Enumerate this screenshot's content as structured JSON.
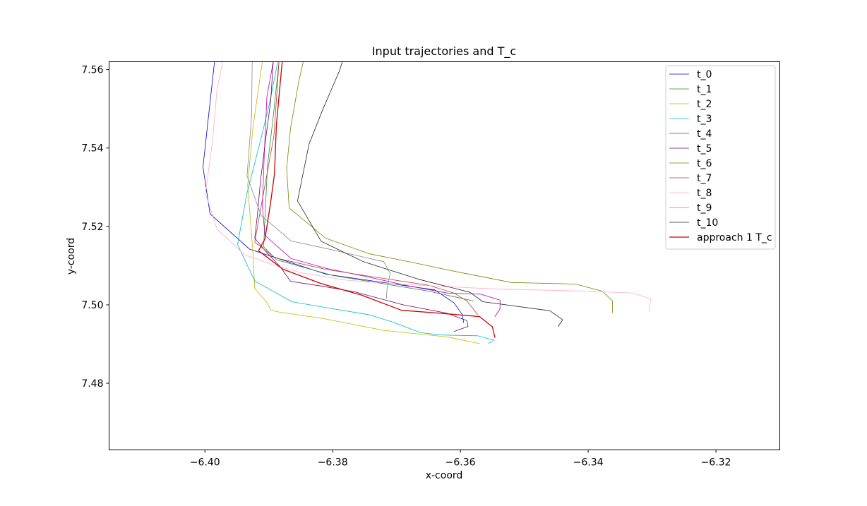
{
  "chart_data": {
    "type": "line",
    "title": "Input trajectories and T_c",
    "xlabel": "x-coord",
    "ylabel": "y-coord",
    "xlim": [
      -6.415,
      -6.31
    ],
    "ylim": [
      7.463,
      7.562
    ],
    "xticks": [
      -6.4,
      -6.38,
      -6.36,
      -6.34,
      -6.32
    ],
    "xtick_labels": [
      "−6.40",
      "−6.38",
      "−6.36",
      "−6.34",
      "−6.32"
    ],
    "yticks": [
      7.48,
      7.5,
      7.52,
      7.54,
      7.56
    ],
    "ytick_labels": [
      "7.48",
      "7.50",
      "7.52",
      "7.54",
      "7.56"
    ],
    "grid": false,
    "legend_position": "top-right",
    "series": [
      {
        "name": "t_0",
        "color": "#0000cc",
        "width": 0.8,
        "points": [
          [
            -6.3985,
            7.562
          ],
          [
            -6.4003,
            7.5352
          ],
          [
            -6.3992,
            7.5232
          ],
          [
            -6.393,
            7.5142
          ],
          [
            -6.381,
            7.5078
          ],
          [
            -6.364,
            7.5038
          ],
          [
            -6.361,
            7.5005
          ],
          [
            -6.3597,
            7.4975
          ],
          [
            -6.3595,
            7.4955
          ]
        ]
      },
      {
        "name": "t_1",
        "color": "#2e8b2e",
        "width": 0.8,
        "points": [
          [
            -6.3884,
            7.562
          ],
          [
            -6.3893,
            7.548
          ],
          [
            -6.3902,
            7.5355
          ],
          [
            -6.3906,
            7.5224
          ],
          [
            -6.3908,
            7.5148
          ],
          [
            -6.3888,
            7.5115
          ],
          [
            -6.38,
            7.5075
          ],
          [
            -6.365,
            7.5035
          ],
          [
            -6.358,
            7.501
          ]
        ]
      },
      {
        "name": "t_2",
        "color": "#c8b400",
        "width": 0.8,
        "points": [
          [
            -6.391,
            7.562
          ],
          [
            -6.3925,
            7.545
          ],
          [
            -6.3933,
            7.5305
          ],
          [
            -6.3925,
            7.5137
          ],
          [
            -6.3922,
            7.5042
          ],
          [
            -6.3902,
            7.5004
          ],
          [
            -6.3897,
            7.4987
          ],
          [
            -6.3886,
            7.4982
          ],
          [
            -6.3815,
            7.4965
          ],
          [
            -6.372,
            7.4935
          ],
          [
            -6.362,
            7.4918
          ],
          [
            -6.357,
            7.4901
          ]
        ]
      },
      {
        "name": "t_3",
        "color": "#00bbbb",
        "width": 0.8,
        "points": [
          [
            -6.3886,
            7.562
          ],
          [
            -6.3898,
            7.552
          ],
          [
            -6.3912,
            7.5425
          ],
          [
            -6.3934,
            7.5285
          ],
          [
            -6.3949,
            7.5154
          ],
          [
            -6.3922,
            7.5061
          ],
          [
            -6.3864,
            7.5008
          ],
          [
            -6.38,
            7.499
          ],
          [
            -6.3744,
            7.4975
          ],
          [
            -6.3706,
            7.4956
          ],
          [
            -6.3662,
            7.4929
          ],
          [
            -6.363,
            7.4923
          ],
          [
            -6.3573,
            7.4921
          ],
          [
            -6.3548,
            7.491
          ],
          [
            -6.3556,
            7.4901
          ]
        ]
      },
      {
        "name": "t_4",
        "color": "#bb00cc",
        "width": 0.8,
        "points": [
          [
            -6.3893,
            7.562
          ],
          [
            -6.3903,
            7.553
          ],
          [
            -6.3907,
            7.5388
          ],
          [
            -6.391,
            7.5251
          ],
          [
            -6.3906,
            7.5177
          ],
          [
            -6.3865,
            7.5118
          ],
          [
            -6.381,
            7.5093
          ],
          [
            -6.375,
            7.5073
          ],
          [
            -6.368,
            7.5048
          ],
          [
            -6.362,
            7.503
          ],
          [
            -6.3568,
            7.5027
          ],
          [
            -6.3538,
            7.5012
          ],
          [
            -6.3538,
            7.499
          ],
          [
            -6.3546,
            7.497
          ]
        ]
      },
      {
        "name": "t_5",
        "color": "#6a006a",
        "width": 0.8,
        "points": [
          [
            -6.3893,
            7.562
          ],
          [
            -6.3897,
            7.552
          ],
          [
            -6.3905,
            7.5422
          ],
          [
            -6.3913,
            7.5315
          ],
          [
            -6.3918,
            7.5226
          ],
          [
            -6.3922,
            7.517
          ],
          [
            -6.3904,
            7.5135
          ],
          [
            -6.3882,
            7.5097
          ],
          [
            -6.3866,
            7.506
          ],
          [
            -6.3818,
            7.5048
          ],
          [
            -6.3765,
            7.5033
          ],
          [
            -6.369,
            7.5
          ],
          [
            -6.3622,
            7.4979
          ],
          [
            -6.359,
            7.496
          ],
          [
            -6.3588,
            7.4945
          ],
          [
            -6.361,
            7.4932
          ]
        ]
      },
      {
        "name": "t_6",
        "color": "#808000",
        "width": 0.8,
        "points": [
          [
            -6.3846,
            7.562
          ],
          [
            -6.3853,
            7.557
          ],
          [
            -6.3866,
            7.545
          ],
          [
            -6.3872,
            7.5348
          ],
          [
            -6.3868,
            7.5247
          ],
          [
            -6.3811,
            7.517
          ],
          [
            -6.3742,
            7.513
          ],
          [
            -6.3675,
            7.5108
          ],
          [
            -6.3608,
            7.5085
          ],
          [
            -6.352,
            7.5057
          ],
          [
            -6.342,
            7.5053
          ],
          [
            -6.3378,
            7.5035
          ],
          [
            -6.3362,
            7.501
          ],
          [
            -6.3362,
            7.498
          ]
        ]
      },
      {
        "name": "t_7",
        "color": "#b04040",
        "width": 0.8,
        "points": [
          [
            -6.3884,
            7.562
          ],
          [
            -6.3887,
            7.555
          ],
          [
            -6.3892,
            7.543
          ],
          [
            -6.391,
            7.5269
          ],
          [
            -6.3922,
            7.516
          ],
          [
            -6.389,
            7.512
          ],
          [
            -6.381,
            7.509
          ],
          [
            -6.373,
            7.507
          ],
          [
            -6.365,
            7.505
          ],
          [
            -6.361,
            7.503
          ],
          [
            -6.359,
            7.501
          ],
          [
            -6.3573,
            7.4975
          ]
        ]
      },
      {
        "name": "t_8",
        "color": "#ffaacc",
        "width": 0.8,
        "points": [
          [
            -6.3972,
            7.562
          ],
          [
            -6.3981,
            7.555
          ],
          [
            -6.3988,
            7.542
          ],
          [
            -6.3999,
            7.5285
          ],
          [
            -6.3981,
            7.5193
          ],
          [
            -6.3938,
            7.5128
          ],
          [
            -6.3895,
            7.5103
          ],
          [
            -6.385,
            7.5082
          ],
          [
            -6.378,
            7.5063
          ],
          [
            -6.369,
            7.5052
          ],
          [
            -6.354,
            7.504
          ],
          [
            -6.34,
            7.5035
          ],
          [
            -6.333,
            7.503
          ],
          [
            -6.3302,
            7.5015
          ],
          [
            -6.3305,
            7.4985
          ]
        ]
      },
      {
        "name": "t_9",
        "color": "#888888",
        "width": 0.8,
        "points": [
          [
            -6.3926,
            7.562
          ],
          [
            -6.3927,
            7.548
          ],
          [
            -6.3934,
            7.5329
          ],
          [
            -6.3912,
            7.5228
          ],
          [
            -6.3865,
            7.5163
          ],
          [
            -6.38,
            7.514
          ],
          [
            -6.372,
            7.511
          ],
          [
            -6.371,
            7.508
          ],
          [
            -6.3715,
            7.504
          ],
          [
            -6.3716,
            7.5015
          ]
        ]
      },
      {
        "name": "t_10",
        "color": "#222222",
        "width": 0.8,
        "points": [
          [
            -6.3785,
            7.562
          ],
          [
            -6.3789,
            7.5598
          ],
          [
            -6.3815,
            7.55
          ],
          [
            -6.3837,
            7.541
          ],
          [
            -6.3855,
            7.5265
          ],
          [
            -6.3818,
            7.5162
          ],
          [
            -6.3752,
            7.511
          ],
          [
            -6.3665,
            7.5065
          ],
          [
            -6.3585,
            7.5032
          ],
          [
            -6.3565,
            7.5008
          ],
          [
            -6.346,
            7.4985
          ],
          [
            -6.344,
            7.4962
          ],
          [
            -6.3447,
            7.4945
          ]
        ]
      },
      {
        "name": "approach 1 T_c",
        "color": "#cc0000",
        "width": 1.3,
        "points": [
          [
            -6.3879,
            7.562
          ],
          [
            -6.3883,
            7.555
          ],
          [
            -6.3888,
            7.546
          ],
          [
            -6.3891,
            7.5335
          ],
          [
            -6.3897,
            7.5262
          ],
          [
            -6.3906,
            7.5168
          ],
          [
            -6.3916,
            7.5138
          ],
          [
            -6.3878,
            7.5091
          ],
          [
            -6.3818,
            7.5054
          ],
          [
            -6.3755,
            7.5025
          ],
          [
            -6.3692,
            7.4986
          ],
          [
            -6.3635,
            7.4979
          ],
          [
            -6.357,
            7.497
          ],
          [
            -6.355,
            7.4944
          ],
          [
            -6.3546,
            7.4917
          ]
        ]
      }
    ]
  }
}
